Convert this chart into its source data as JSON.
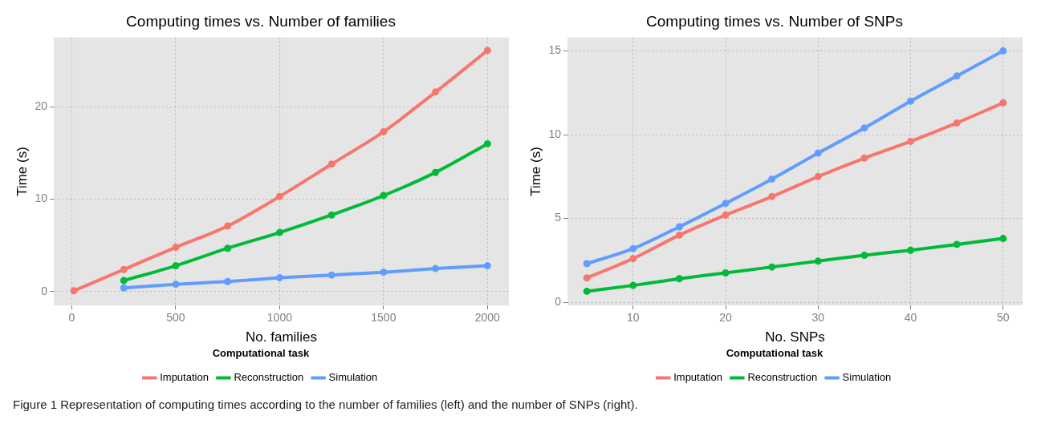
{
  "chart_data": [
    {
      "type": "line",
      "title": "Computing times vs. Number of families",
      "xlabel": "No. families",
      "ylabel": "Time (s)",
      "legend_title": "Computational task",
      "legend": "bottom",
      "grid": true,
      "marker": "circle",
      "line_style": "solid",
      "x": [
        10,
        250,
        500,
        750,
        1000,
        1250,
        1500,
        1750,
        2000
      ],
      "xlim": [
        -87,
        2103
      ],
      "xticks": [
        0,
        500,
        1000,
        1500,
        2000
      ],
      "ylim": [
        -1.5,
        27.5
      ],
      "yticks": [
        0,
        10,
        20
      ],
      "series": [
        {
          "name": "Imputation",
          "color": "#f8766d",
          "values": [
            0.1,
            2.4,
            4.8,
            7.1,
            10.3,
            13.8,
            17.3,
            21.6,
            26.1
          ]
        },
        {
          "name": "Reconstruction",
          "color": "#00ba38",
          "values": [
            null,
            1.2,
            2.8,
            4.7,
            6.4,
            8.3,
            10.4,
            12.9,
            16
          ]
        },
        {
          "name": "Simulation",
          "color": "#619cff",
          "values": [
            null,
            0.4,
            0.8,
            1.1,
            1.5,
            1.8,
            2.1,
            2.5,
            2.8
          ]
        }
      ],
      "annotations": [
        "Figure 1 Representation of computing times according to the number of families (left) and the number of SNPs (right)."
      ]
    },
    {
      "type": "line",
      "title": "Computing times vs. Number of SNPs",
      "xlabel": "No. SNPs",
      "ylabel": "Time (s)",
      "legend_title": "Computational task",
      "legend": "bottom",
      "grid": true,
      "marker": "circle",
      "line_style": "solid",
      "x": [
        5,
        10,
        15,
        20,
        25,
        30,
        35,
        40,
        45,
        50
      ],
      "xlim": [
        2.9,
        52.1
      ],
      "xticks": [
        10,
        20,
        30,
        40,
        50
      ],
      "ylim": [
        -0.2,
        15.8
      ],
      "yticks": [
        0,
        5,
        10,
        15
      ],
      "series": [
        {
          "name": "Imputation",
          "color": "#f8766d",
          "values": [
            1.45,
            2.6,
            4.0,
            5.2,
            6.3,
            7.5,
            8.6,
            9.6,
            10.7,
            11.9
          ]
        },
        {
          "name": "Reconstruction",
          "color": "#00ba38",
          "values": [
            0.65,
            1.0,
            1.4,
            1.75,
            2.1,
            2.45,
            2.8,
            3.1,
            3.45,
            3.8
          ]
        },
        {
          "name": "Simulation",
          "color": "#619cff",
          "values": [
            2.3,
            3.2,
            4.5,
            5.9,
            7.35,
            8.9,
            10.4,
            12.0,
            13.5,
            15.0
          ]
        }
      ]
    }
  ]
}
